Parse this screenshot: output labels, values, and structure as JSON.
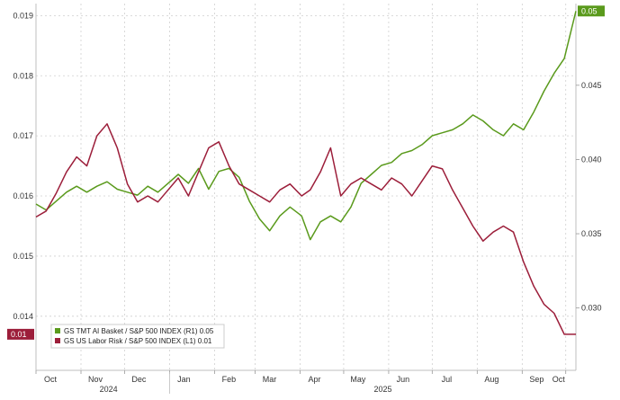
{
  "chart_data": {
    "type": "line",
    "x_axis": {
      "month_labels": [
        "Oct",
        "Nov",
        "Dec",
        "Jan",
        "Feb",
        "Mar",
        "Apr",
        "May",
        "Jun",
        "Jul",
        "Aug",
        "Sep",
        "Oct"
      ],
      "year_labels": [
        "2024",
        "2025"
      ],
      "range": [
        "2024-10-01",
        "2025-10-08"
      ]
    },
    "y_left": {
      "ticks": [
        "0.019",
        "0.018",
        "0.017",
        "0.016",
        "0.015",
        "0.014"
      ],
      "range": [
        0.0131,
        0.0192
      ]
    },
    "y_right": {
      "ticks": [
        "0.045",
        "0.040",
        "0.035",
        "0.030"
      ],
      "range": [
        0.0258,
        0.0505
      ]
    },
    "grid": true,
    "legend_placement": "bottom-left",
    "series": [
      {
        "name": "GS TMT AI Basket / S&P 500 INDEX (R1) 0.05",
        "axis": "right",
        "color": "#5a9a1c",
        "last_value_label": "0.05",
        "points": [
          [
            "2024-10-01",
            0.037
          ],
          [
            "2024-10-08",
            0.0366
          ],
          [
            "2024-10-15",
            0.0372
          ],
          [
            "2024-10-22",
            0.0378
          ],
          [
            "2024-10-29",
            0.0382
          ],
          [
            "2024-11-05",
            0.0378
          ],
          [
            "2024-11-12",
            0.0382
          ],
          [
            "2024-11-19",
            0.0385
          ],
          [
            "2024-11-26",
            0.038
          ],
          [
            "2024-12-03",
            0.0378
          ],
          [
            "2024-12-10",
            0.0376
          ],
          [
            "2024-12-17",
            0.0382
          ],
          [
            "2024-12-24",
            0.0378
          ],
          [
            "2024-12-31",
            0.0384
          ],
          [
            "2025-01-07",
            0.039
          ],
          [
            "2025-01-14",
            0.0384
          ],
          [
            "2025-01-21",
            0.0394
          ],
          [
            "2025-01-28",
            0.038
          ],
          [
            "2025-02-04",
            0.0392
          ],
          [
            "2025-02-11",
            0.0394
          ],
          [
            "2025-02-18",
            0.0388
          ],
          [
            "2025-02-25",
            0.0372
          ],
          [
            "2025-03-04",
            0.036
          ],
          [
            "2025-03-11",
            0.0352
          ],
          [
            "2025-03-18",
            0.0362
          ],
          [
            "2025-03-25",
            0.0368
          ],
          [
            "2025-04-02",
            0.0362
          ],
          [
            "2025-04-08",
            0.0346
          ],
          [
            "2025-04-15",
            0.0358
          ],
          [
            "2025-04-22",
            0.0362
          ],
          [
            "2025-04-29",
            0.0358
          ],
          [
            "2025-05-06",
            0.0368
          ],
          [
            "2025-05-13",
            0.0384
          ],
          [
            "2025-05-20",
            0.039
          ],
          [
            "2025-05-27",
            0.0396
          ],
          [
            "2025-06-03",
            0.0398
          ],
          [
            "2025-06-10",
            0.0404
          ],
          [
            "2025-06-17",
            0.0406
          ],
          [
            "2025-06-24",
            0.041
          ],
          [
            "2025-07-01",
            0.0416
          ],
          [
            "2025-07-08",
            0.0418
          ],
          [
            "2025-07-15",
            0.042
          ],
          [
            "2025-07-22",
            0.0424
          ],
          [
            "2025-07-29",
            0.043
          ],
          [
            "2025-08-05",
            0.0426
          ],
          [
            "2025-08-12",
            0.042
          ],
          [
            "2025-08-19",
            0.0416
          ],
          [
            "2025-08-26",
            0.0424
          ],
          [
            "2025-09-02",
            0.042
          ],
          [
            "2025-09-09",
            0.0432
          ],
          [
            "2025-09-16",
            0.0446
          ],
          [
            "2025-09-23",
            0.0458
          ],
          [
            "2025-09-30",
            0.0468
          ],
          [
            "2025-10-08",
            0.05
          ]
        ]
      },
      {
        "name": "GS US Labor Risk / S&P 500 INDEX (L1) 0.01",
        "axis": "left",
        "color": "#9c1e3a",
        "last_value_label": "0.01",
        "points": [
          [
            "2024-10-01",
            0.01565
          ],
          [
            "2024-10-08",
            0.01575
          ],
          [
            "2024-10-15",
            0.01605
          ],
          [
            "2024-10-22",
            0.0164
          ],
          [
            "2024-10-29",
            0.01665
          ],
          [
            "2024-11-05",
            0.0165
          ],
          [
            "2024-11-12",
            0.017
          ],
          [
            "2024-11-19",
            0.0172
          ],
          [
            "2024-11-26",
            0.0168
          ],
          [
            "2024-12-03",
            0.0162
          ],
          [
            "2024-12-10",
            0.0159
          ],
          [
            "2024-12-17",
            0.016
          ],
          [
            "2024-12-24",
            0.0159
          ],
          [
            "2024-12-31",
            0.0161
          ],
          [
            "2025-01-07",
            0.0163
          ],
          [
            "2025-01-14",
            0.016
          ],
          [
            "2025-01-21",
            0.0164
          ],
          [
            "2025-01-28",
            0.0168
          ],
          [
            "2025-02-04",
            0.0169
          ],
          [
            "2025-02-11",
            0.0165
          ],
          [
            "2025-02-18",
            0.0162
          ],
          [
            "2025-02-25",
            0.0161
          ],
          [
            "2025-03-04",
            0.016
          ],
          [
            "2025-03-11",
            0.0159
          ],
          [
            "2025-03-18",
            0.0161
          ],
          [
            "2025-03-25",
            0.0162
          ],
          [
            "2025-04-02",
            0.016
          ],
          [
            "2025-04-08",
            0.0161
          ],
          [
            "2025-04-15",
            0.0164
          ],
          [
            "2025-04-22",
            0.0168
          ],
          [
            "2025-04-29",
            0.016
          ],
          [
            "2025-05-06",
            0.0162
          ],
          [
            "2025-05-13",
            0.0163
          ],
          [
            "2025-05-20",
            0.0162
          ],
          [
            "2025-05-27",
            0.0161
          ],
          [
            "2025-06-03",
            0.0163
          ],
          [
            "2025-06-10",
            0.0162
          ],
          [
            "2025-06-17",
            0.016
          ],
          [
            "2025-06-24",
            0.01625
          ],
          [
            "2025-07-01",
            0.0165
          ],
          [
            "2025-07-08",
            0.01645
          ],
          [
            "2025-07-15",
            0.0161
          ],
          [
            "2025-07-22",
            0.0158
          ],
          [
            "2025-07-29",
            0.0155
          ],
          [
            "2025-08-05",
            0.01525
          ],
          [
            "2025-08-12",
            0.0154
          ],
          [
            "2025-08-19",
            0.0155
          ],
          [
            "2025-08-26",
            0.0154
          ],
          [
            "2025-09-02",
            0.0149
          ],
          [
            "2025-09-09",
            0.0145
          ],
          [
            "2025-09-16",
            0.0142
          ],
          [
            "2025-09-23",
            0.01405
          ],
          [
            "2025-09-30",
            0.0137
          ],
          [
            "2025-10-08",
            0.0137
          ]
        ]
      }
    ]
  }
}
